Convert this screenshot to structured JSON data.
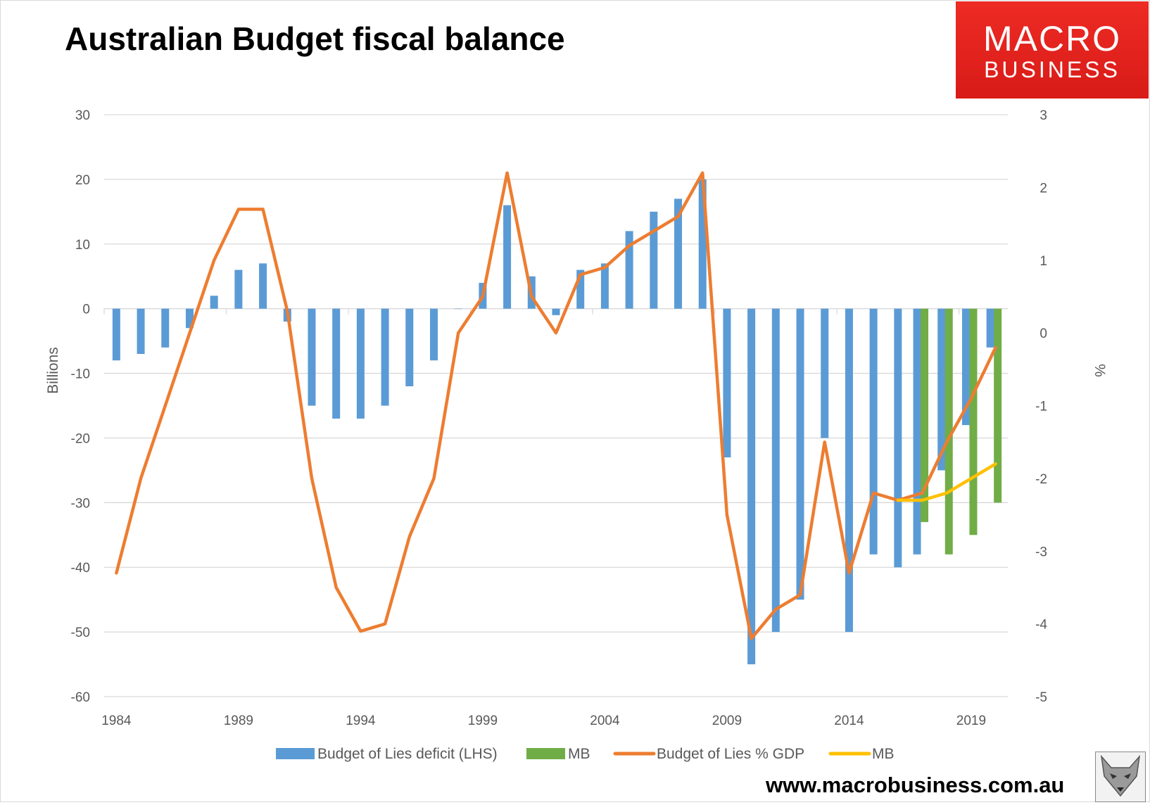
{
  "header": {
    "title": "Australian Budget fiscal balance"
  },
  "logo": {
    "line1": "MACRO",
    "line2": "BUSINESS",
    "color": "#e0211c"
  },
  "footer": {
    "website": "www.macrobusiness.com.au",
    "mascot_icon": "fox-mascot-icon"
  },
  "colors": {
    "bars_lies": "#5b9bd5",
    "bars_mb": "#70ad47",
    "line_lies": "#ed7d31",
    "line_mb": "#ffc000",
    "grid": "#d9d9d9",
    "axis_text": "#595959"
  },
  "chart_data": {
    "type": "bar",
    "x": [
      1984,
      1985,
      1986,
      1987,
      1988,
      1989,
      1990,
      1991,
      1992,
      1993,
      1994,
      1995,
      1996,
      1997,
      1998,
      1999,
      2000,
      2001,
      2002,
      2003,
      2004,
      2005,
      2006,
      2007,
      2008,
      2009,
      2010,
      2011,
      2012,
      2013,
      2014,
      2015,
      2016,
      2017,
      2018,
      2019,
      2020
    ],
    "x_tick_labels": [
      "1984",
      "1989",
      "1994",
      "1999",
      "2004",
      "2009",
      "2014",
      "2019"
    ],
    "ylabel": "Billions",
    "y2label": "%",
    "ylim": [
      -60,
      30
    ],
    "y2lim": [
      -5,
      3
    ],
    "y_ticks": [
      30,
      20,
      10,
      0,
      -10,
      -20,
      -30,
      -40,
      -50,
      -60
    ],
    "y2_ticks": [
      3,
      2,
      1,
      0,
      -1,
      -2,
      -3,
      -4,
      -5
    ],
    "grid": true,
    "legend_position": "bottom",
    "series": [
      {
        "name": "Budget of Lies deficit (LHS)",
        "type": "bar",
        "axis": "left",
        "values": [
          -8,
          -7,
          -6,
          -3,
          2,
          6,
          7,
          -2,
          -15,
          -17,
          -17,
          -15,
          -12,
          -8,
          0,
          4,
          16,
          5,
          -1,
          6,
          7,
          12,
          15,
          17,
          20,
          -23,
          -55,
          -50,
          -45,
          -20,
          -50,
          -38,
          -40,
          -38,
          -25,
          -18,
          -6
        ]
      },
      {
        "name": "MB",
        "type": "bar",
        "axis": "left",
        "values": [
          null,
          null,
          null,
          null,
          null,
          null,
          null,
          null,
          null,
          null,
          null,
          null,
          null,
          null,
          null,
          null,
          null,
          null,
          null,
          null,
          null,
          null,
          null,
          null,
          null,
          null,
          null,
          null,
          null,
          null,
          null,
          null,
          null,
          -33,
          -38,
          -35,
          -30
        ]
      },
      {
        "name": "Budget of Lies % GDP",
        "type": "line",
        "axis": "right",
        "values": [
          -3.3,
          -2.0,
          -1.0,
          0.0,
          1.0,
          1.7,
          1.7,
          0.3,
          -2.0,
          -3.5,
          -4.1,
          -4.0,
          -2.8,
          -2.0,
          0.0,
          0.5,
          2.2,
          0.5,
          0.0,
          0.8,
          0.9,
          1.2,
          1.4,
          1.6,
          2.2,
          -2.5,
          -4.2,
          -3.8,
          -3.6,
          -1.5,
          -3.3,
          -2.2,
          -2.3,
          -2.2,
          -1.5,
          -0.9,
          -0.2
        ]
      },
      {
        "name": "MB",
        "type": "line",
        "axis": "right",
        "values": [
          null,
          null,
          null,
          null,
          null,
          null,
          null,
          null,
          null,
          null,
          null,
          null,
          null,
          null,
          null,
          null,
          null,
          null,
          null,
          null,
          null,
          null,
          null,
          null,
          null,
          null,
          null,
          null,
          null,
          null,
          null,
          null,
          -2.3,
          -2.3,
          -2.2,
          -2.0,
          -1.8
        ]
      }
    ]
  }
}
